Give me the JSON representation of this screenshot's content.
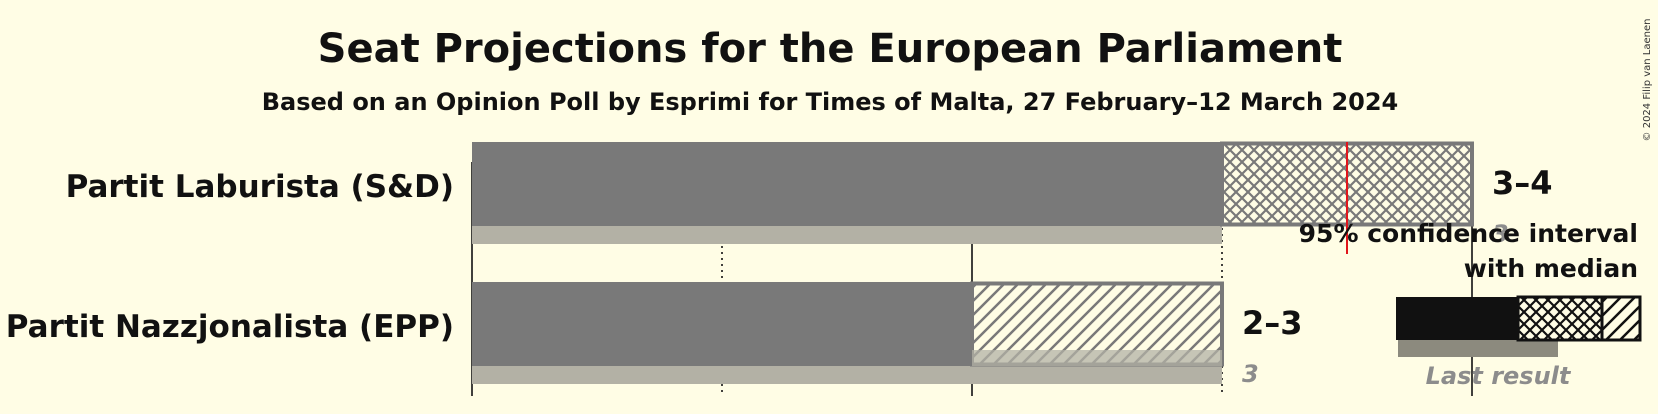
{
  "chart_data": {
    "type": "bar",
    "title": "Seat Projections for the European Parliament",
    "subtitle": "Based on an Opinion Poll by Esprimi for Times of Malta, 27 February–12 March 2024",
    "copyright": "© 2024 Filip van Laenen",
    "x_range": [
      0,
      4
    ],
    "x_gridlines": [
      0,
      1,
      2,
      3,
      4
    ],
    "majority_line": 3.5,
    "parties": [
      {
        "name": "Partit Laburista (S&D)",
        "ci_low": 3,
        "ci_high": 4,
        "median": 3,
        "last_result": 3,
        "range_label": "3–4",
        "last_label": "3",
        "pattern": "crosshatch"
      },
      {
        "name": "Partit Nazzjonalista (EPP)",
        "ci_low": 2,
        "ci_high": 3,
        "median": 3,
        "last_result": 3,
        "range_label": "2–3",
        "last_label": "3",
        "pattern": "diagonal"
      }
    ],
    "legend": {
      "line1": "95% confidence interval",
      "line2": "with median",
      "last_result_label": "Last result"
    }
  },
  "colors": {
    "background": "#FFFDE5",
    "bar": "#797979",
    "last_result": "#B3B1A5",
    "hatch_stroke": "#797979",
    "majority_line": "#E0161C",
    "legend_bar": "#111111",
    "legend_last": "#8C8A7E"
  }
}
